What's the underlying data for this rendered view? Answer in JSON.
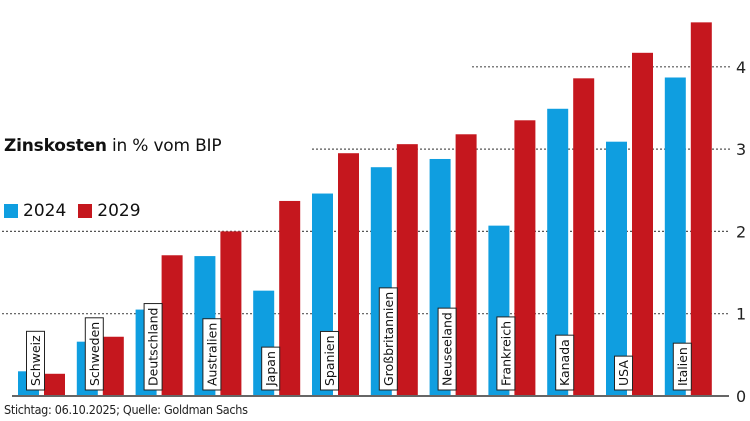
{
  "chart_data": {
    "type": "bar",
    "title_bold": "Zinskosten",
    "title_rest": " in % vom BIP",
    "xlabel": "",
    "ylabel": "",
    "categories": [
      "Schweiz",
      "Schweden",
      "Deutschland",
      "Australien",
      "Japan",
      "Spanien",
      "Großbritannien",
      "Neuseeland",
      "Frankreich",
      "Kanada",
      "USA",
      "Italien"
    ],
    "series": [
      {
        "name": "2024",
        "color": "#0f9ee0",
        "values": [
          0.3,
          0.66,
          1.05,
          1.7,
          1.28,
          2.46,
          2.78,
          2.88,
          2.07,
          3.49,
          3.09,
          3.87
        ]
      },
      {
        "name": "2029",
        "color": "#c5171e",
        "values": [
          0.27,
          0.72,
          1.71,
          2.0,
          2.37,
          2.95,
          3.06,
          3.18,
          3.35,
          3.86,
          4.17,
          4.54
        ]
      }
    ],
    "ylim": [
      0,
      4.6
    ],
    "yticks": [
      0,
      1,
      2,
      3,
      4
    ],
    "ytick_labels": [
      "0",
      "1",
      "2",
      "3",
      "4"
    ],
    "y_axis_side": "right",
    "grid": "dotted horizontal",
    "legend_position": "left, below title",
    "source": "Stichtag: 06.10.2025; Quelle: Goldman Sachs"
  }
}
